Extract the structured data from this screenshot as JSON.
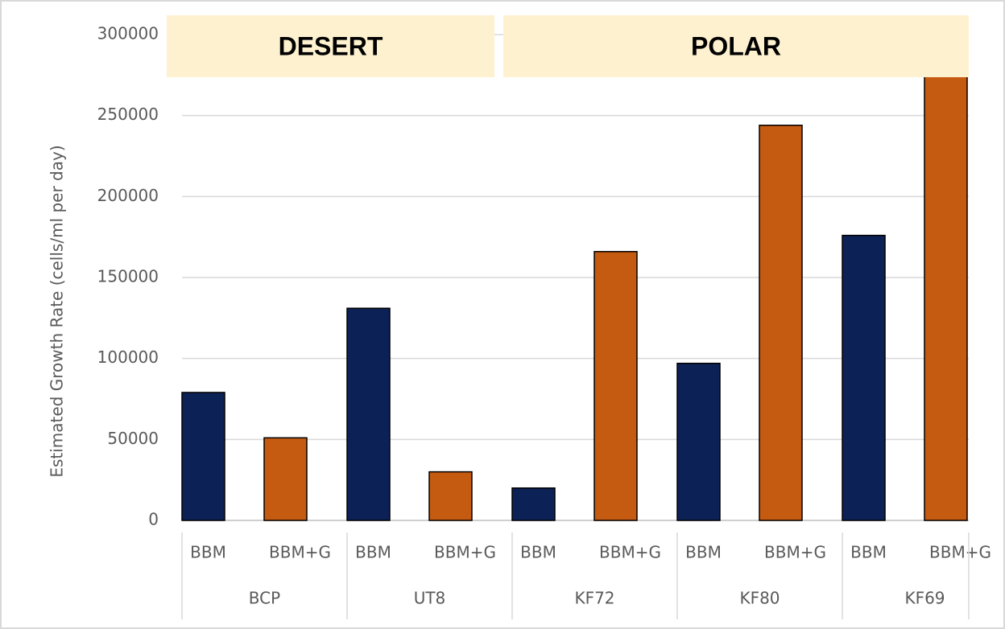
{
  "chart_data": {
    "type": "bar",
    "y_label": "Estimated Growth Rate (cells/ml per day)",
    "categories": [
      "BCP",
      "UT8",
      "KF72",
      "KF80",
      "KF69"
    ],
    "series": [
      {
        "name": "BBM",
        "color": "#0c2156",
        "values": [
          79000,
          131000,
          20000,
          97000,
          176000
        ]
      },
      {
        "name": "BBM+G",
        "color": "#c55a11",
        "values": [
          51000,
          30000,
          166000,
          244000,
          285000
        ]
      }
    ],
    "ylim": [
      0,
      300000
    ],
    "yticks": [
      0,
      50000,
      100000,
      150000,
      200000,
      250000,
      300000
    ],
    "grid": true,
    "annotations": [
      "DESERT",
      "POLAR"
    ]
  }
}
